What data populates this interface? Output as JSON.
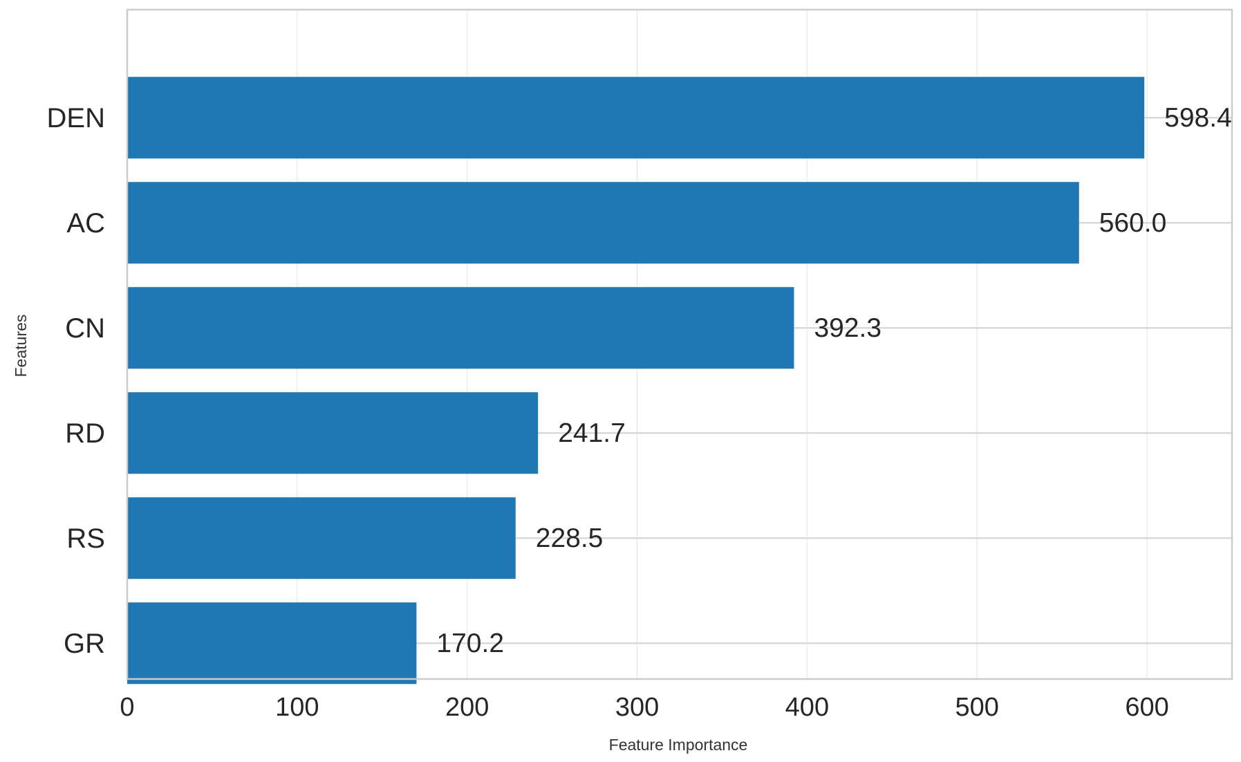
{
  "chart_data": {
    "type": "bar",
    "orientation": "horizontal",
    "categories": [
      "DEN",
      "AC",
      "CN",
      "RD",
      "RS",
      "GR"
    ],
    "values": [
      598.4,
      560.0,
      392.3,
      241.7,
      228.5,
      170.2
    ],
    "value_labels": [
      "598.4",
      "560.0",
      "392.3",
      "241.7",
      "228.5",
      "170.2"
    ],
    "xticks": [
      0,
      100,
      200,
      300,
      400,
      500,
      600
    ],
    "xtick_labels": [
      "0",
      "100",
      "200",
      "300",
      "400",
      "500",
      "600"
    ],
    "xlim": [
      0,
      650
    ],
    "xlabel": "Feature Importance",
    "ylabel": "Features",
    "title": "",
    "grid": true,
    "legend": "none",
    "bar_color": "#1f77b4",
    "grid_color": "#d9d9d9",
    "frame_color": "#cccccc"
  }
}
